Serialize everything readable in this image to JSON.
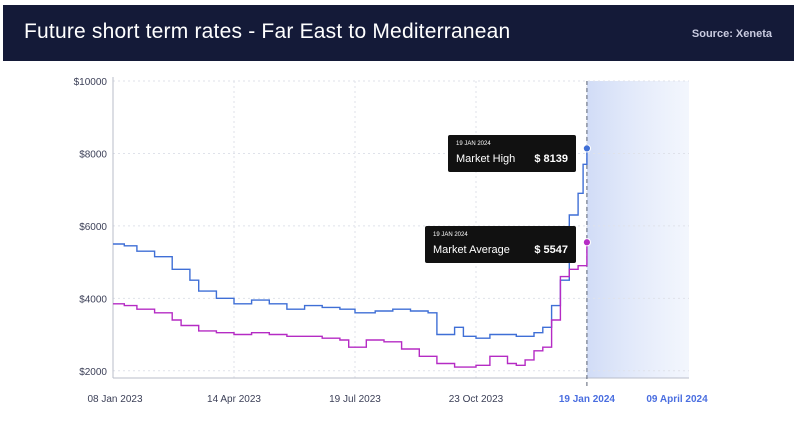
{
  "header": {
    "title": "Future short term rates - Far East to Mediterranean",
    "source": "Source: Xeneta"
  },
  "chart_data": {
    "type": "line",
    "x_tick_labels": [
      "08 Jan 2023",
      "14 Apr 2023",
      "19 Jul 2023",
      "23 Oct 2023",
      "19 Jan 2024",
      "09 April 2024"
    ],
    "future_tick_labels": [
      "19 Jan 2024",
      "09 April 2024"
    ],
    "y_tick_labels": [
      "$10000",
      "$8000",
      "$6000",
      "$4000",
      "$2000"
    ],
    "ylim": [
      1800,
      10000
    ],
    "xlim": [
      "2023-01-08",
      "2024-04-09"
    ],
    "highlight_date": "2024-01-19",
    "grid": true,
    "series": [
      {
        "name": "Market High",
        "color": "#3f6fd6",
        "points": [
          [
            "2023-01-08",
            5500
          ],
          [
            "2023-01-17",
            5450
          ],
          [
            "2023-01-27",
            5300
          ],
          [
            "2023-02-10",
            5150
          ],
          [
            "2023-02-24",
            4800
          ],
          [
            "2023-03-10",
            4500
          ],
          [
            "2023-03-17",
            4200
          ],
          [
            "2023-03-31",
            4000
          ],
          [
            "2023-04-14",
            3850
          ],
          [
            "2023-04-28",
            3950
          ],
          [
            "2023-05-12",
            3850
          ],
          [
            "2023-05-26",
            3700
          ],
          [
            "2023-06-09",
            3800
          ],
          [
            "2023-06-23",
            3750
          ],
          [
            "2023-07-07",
            3700
          ],
          [
            "2023-07-19",
            3600
          ],
          [
            "2023-08-04",
            3650
          ],
          [
            "2023-08-18",
            3700
          ],
          [
            "2023-09-01",
            3650
          ],
          [
            "2023-09-15",
            3600
          ],
          [
            "2023-09-22",
            3000
          ],
          [
            "2023-10-06",
            3200
          ],
          [
            "2023-10-13",
            2950
          ],
          [
            "2023-10-23",
            2900
          ],
          [
            "2023-11-03",
            3000
          ],
          [
            "2023-11-17",
            3000
          ],
          [
            "2023-11-24",
            2950
          ],
          [
            "2023-12-08",
            3050
          ],
          [
            "2023-12-15",
            3200
          ],
          [
            "2023-12-22",
            3800
          ],
          [
            "2023-12-29",
            4500
          ],
          [
            "2024-01-05",
            6300
          ],
          [
            "2024-01-12",
            6900
          ],
          [
            "2024-01-16",
            7700
          ],
          [
            "2024-01-19",
            8139
          ]
        ]
      },
      {
        "name": "Market Average",
        "color": "#b52bc4",
        "points": [
          [
            "2023-01-08",
            3850
          ],
          [
            "2023-01-17",
            3800
          ],
          [
            "2023-01-27",
            3700
          ],
          [
            "2023-02-10",
            3600
          ],
          [
            "2023-02-24",
            3400
          ],
          [
            "2023-03-03",
            3250
          ],
          [
            "2023-03-17",
            3100
          ],
          [
            "2023-03-31",
            3050
          ],
          [
            "2023-04-14",
            3000
          ],
          [
            "2023-04-28",
            3050
          ],
          [
            "2023-05-12",
            3000
          ],
          [
            "2023-05-26",
            2950
          ],
          [
            "2023-06-09",
            2950
          ],
          [
            "2023-06-23",
            2900
          ],
          [
            "2023-07-07",
            2850
          ],
          [
            "2023-07-14",
            2650
          ],
          [
            "2023-07-19",
            2650
          ],
          [
            "2023-07-28",
            2850
          ],
          [
            "2023-08-11",
            2800
          ],
          [
            "2023-08-25",
            2600
          ],
          [
            "2023-09-08",
            2400
          ],
          [
            "2023-09-22",
            2200
          ],
          [
            "2023-10-06",
            2100
          ],
          [
            "2023-10-23",
            2150
          ],
          [
            "2023-11-03",
            2400
          ],
          [
            "2023-11-17",
            2200
          ],
          [
            "2023-11-24",
            2150
          ],
          [
            "2023-12-01",
            2300
          ],
          [
            "2023-12-08",
            2550
          ],
          [
            "2023-12-15",
            2650
          ],
          [
            "2023-12-22",
            3400
          ],
          [
            "2023-12-29",
            4600
          ],
          [
            "2024-01-05",
            4800
          ],
          [
            "2024-01-12",
            4900
          ],
          [
            "2024-01-19",
            5547
          ]
        ]
      }
    ],
    "tooltips": [
      {
        "date": "19 JAN 2024",
        "label": "Market High",
        "value": "$ 8139"
      },
      {
        "date": "19 JAN 2024",
        "label": "Market Average",
        "value": "$ 5547"
      }
    ]
  }
}
